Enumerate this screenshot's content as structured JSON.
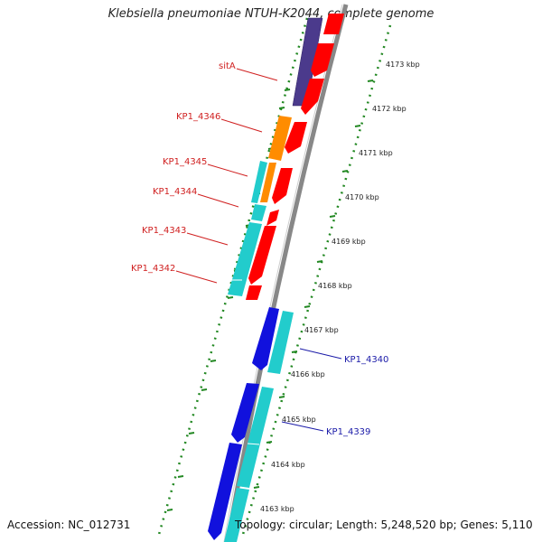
{
  "title": "Klebsiella pneumoniae NTUH-K2044, complete genome",
  "footer": {
    "accession": "Accession: NC_012731",
    "summary": "Topology: circular; Length: 5,248,520 bp; Genes: 5,110"
  },
  "colors": {
    "backbone": "#888888",
    "forward_gene": "#ff0000",
    "reverse_gene_blue": "#1111dd",
    "reverse_gene_cyan": "#22cccc",
    "reverse_gene_orange": "#ff8c00",
    "reverse_gene_purple": "#4b3a8c",
    "tick_marks": "#228822",
    "label_red": "#d02020",
    "label_blue": "#1a1aa8"
  },
  "scale_ticks": [
    "4173 kbp",
    "4172 kbp",
    "4171 kbp",
    "4170 kbp",
    "4169 kbp",
    "4168 kbp",
    "4167 kbp",
    "4166 kbp",
    "4165 kbp",
    "4164 kbp",
    "4163 kbp"
  ],
  "gene_labels": [
    {
      "name": "sitA",
      "color": "red"
    },
    {
      "name": "KP1_4346",
      "color": "red"
    },
    {
      "name": "KP1_4345",
      "color": "red"
    },
    {
      "name": "KP1_4344",
      "color": "red"
    },
    {
      "name": "KP1_4343",
      "color": "red"
    },
    {
      "name": "KP1_4342",
      "color": "red"
    },
    {
      "name": "KP1_4340",
      "color": "blue"
    },
    {
      "name": "KP1_4339",
      "color": "blue"
    }
  ]
}
